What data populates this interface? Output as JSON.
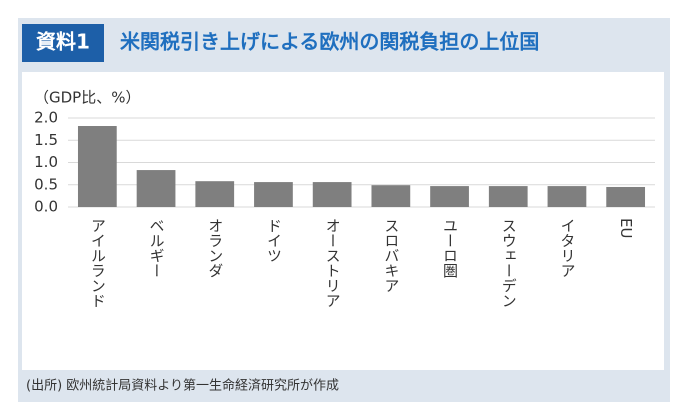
{
  "figure_label": "資料1",
  "chart_data": {
    "type": "bar",
    "title": "米関税引き上げによる欧州の関税負担の上位国",
    "y_label": "（GDP比、%）",
    "categories": [
      "アイルランド",
      "ベルギー",
      "オランダ",
      "ドイツ",
      "オーストリア",
      "スロバキア",
      "ユーロ圏",
      "スウェーデン",
      "イタリア",
      "EU"
    ],
    "values": [
      1.82,
      0.83,
      0.58,
      0.56,
      0.56,
      0.49,
      0.47,
      0.47,
      0.47,
      0.45
    ],
    "color": "#7f7f7f",
    "ylim": [
      0,
      2
    ],
    "yticks": [
      {
        "value": 0,
        "label": "0.0"
      },
      {
        "value": 0.5,
        "label": "0.5"
      },
      {
        "value": 1,
        "label": "1.0"
      },
      {
        "value": 1.5,
        "label": "1.5"
      },
      {
        "value": 2,
        "label": "2.0"
      }
    ],
    "grid": true,
    "source": "(出所) 欧州統計局資料より第一生命経済研究所が作成"
  }
}
